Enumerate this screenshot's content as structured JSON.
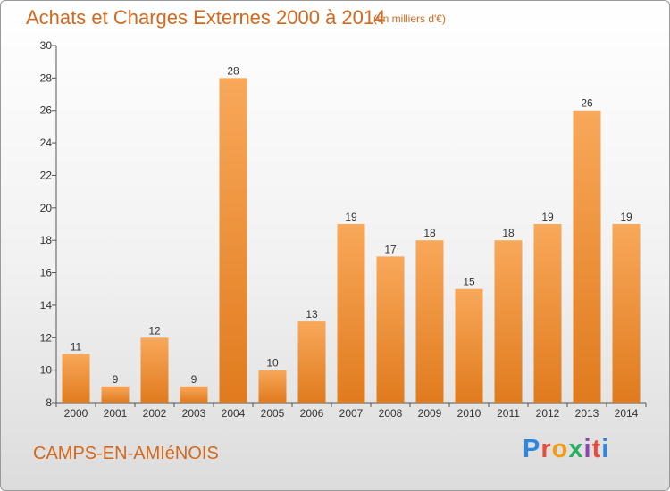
{
  "header": {
    "title": "Achats et Charges Externes 2000 à 2014",
    "unit": "(en milliers d'€)"
  },
  "footer": {
    "location": "CAMPS-EN-AMIéNOIS",
    "brand": "Proxiti"
  },
  "colors": {
    "bar_light": "#f8a85a",
    "bar_dark": "#e07b1e",
    "title": "#d2691e",
    "brand_letters": [
      "#2e86de",
      "#e74c3c",
      "#f39c12",
      "#27ae60",
      "#8e44ad",
      "#e74c3c",
      "#2e86de"
    ]
  },
  "chart_data": {
    "type": "bar",
    "title": "Achats et Charges Externes 2000 à 2014",
    "xlabel": "",
    "ylabel": "",
    "categories": [
      "2000",
      "2001",
      "2002",
      "2003",
      "2004",
      "2005",
      "2006",
      "2007",
      "2008",
      "2009",
      "2010",
      "2011",
      "2012",
      "2013",
      "2014"
    ],
    "values": [
      11,
      9,
      12,
      9,
      28,
      10,
      13,
      19,
      17,
      18,
      15,
      18,
      19,
      26,
      19
    ],
    "data_labels": [
      "11",
      "9",
      "12",
      "9",
      "28",
      "10",
      "13",
      "19",
      "17",
      "18",
      "15",
      "18",
      "19",
      "26",
      "19"
    ],
    "ylim": [
      8,
      30
    ],
    "yticks": [
      8,
      10,
      12,
      14,
      16,
      18,
      20,
      22,
      24,
      26,
      28,
      30
    ],
    "grid": false,
    "legend": "none"
  }
}
